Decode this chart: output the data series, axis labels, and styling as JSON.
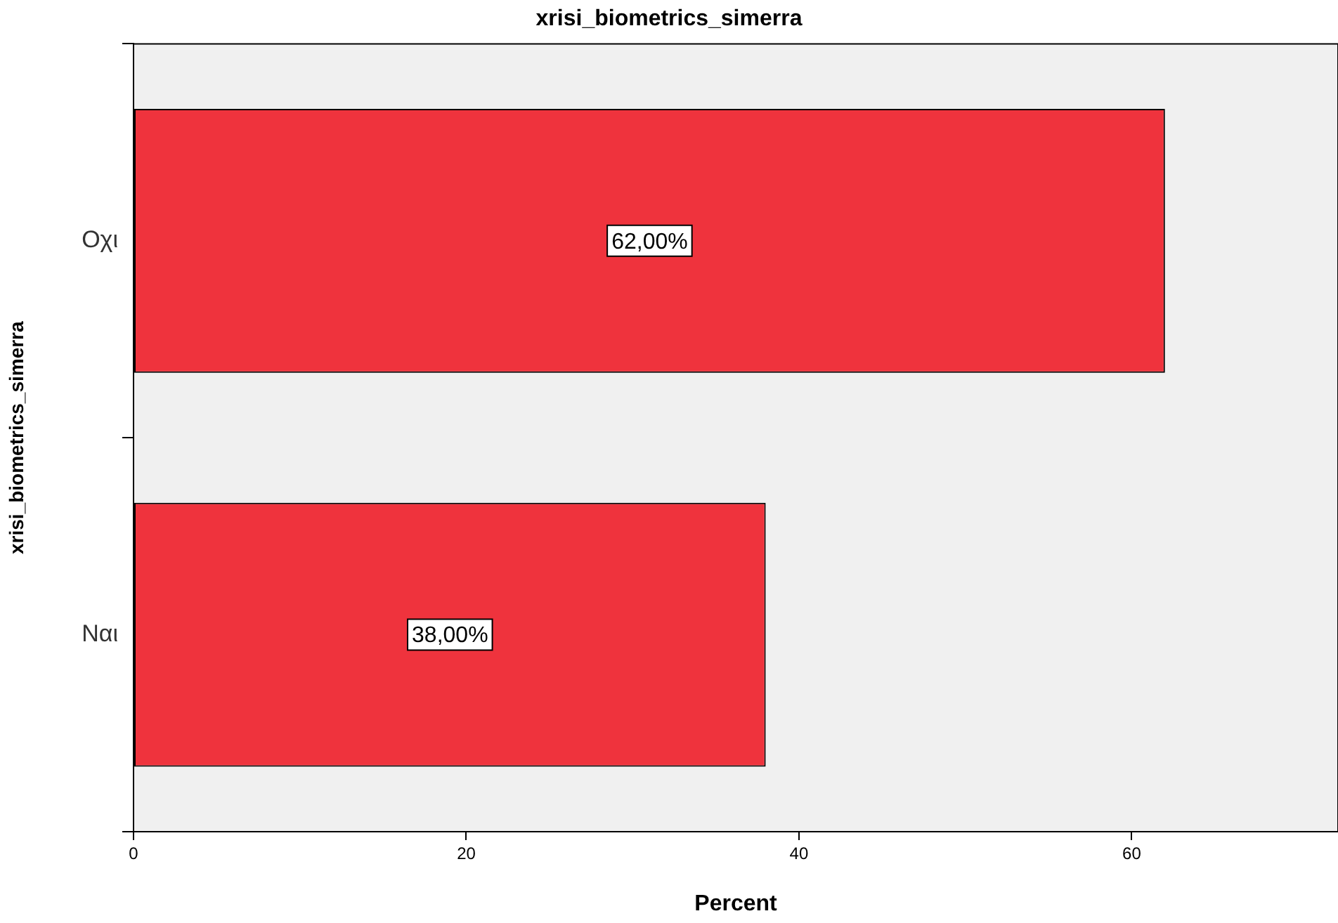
{
  "chart_data": {
    "type": "bar",
    "orientation": "horizontal",
    "title": "xrisi_biometrics_simerra",
    "xlabel": "Percent",
    "ylabel": "xrisi_biometrics_simerra",
    "categories": [
      "Οχι",
      "Ναι"
    ],
    "values": [
      62,
      38
    ],
    "value_labels": [
      "62,00%",
      "38,00%"
    ],
    "color": "#ef333d",
    "xlim": [
      0,
      72.4
    ],
    "xticks": [
      0,
      20,
      40,
      60
    ]
  }
}
